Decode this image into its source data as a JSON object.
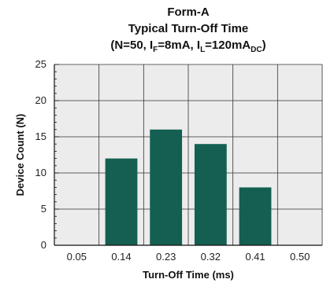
{
  "chart_data": {
    "type": "bar",
    "title": "Form-A",
    "subtitle": "Typical Turn-Off Time",
    "conditions": {
      "open": "(N=50, I",
      "if_sub": "F",
      "if_val": "=8mA, I",
      "il_sub": "L",
      "il_val": "=120mA",
      "dc_sub": "DC",
      "close": ")"
    },
    "xlabel": "Turn-Off Time (ms)",
    "ylabel": "Device Count (N)",
    "x_ticks": [
      "0.05",
      "0.14",
      "0.23",
      "0.32",
      "0.41",
      "0.50"
    ],
    "categories": [
      "0.14",
      "0.23",
      "0.32",
      "0.41"
    ],
    "values": [
      12,
      16,
      14,
      8
    ],
    "ylim": [
      0,
      25
    ],
    "y_ticks": [
      0,
      5,
      10,
      15,
      20,
      25
    ],
    "grid": true,
    "bar_color": "#145f52"
  }
}
